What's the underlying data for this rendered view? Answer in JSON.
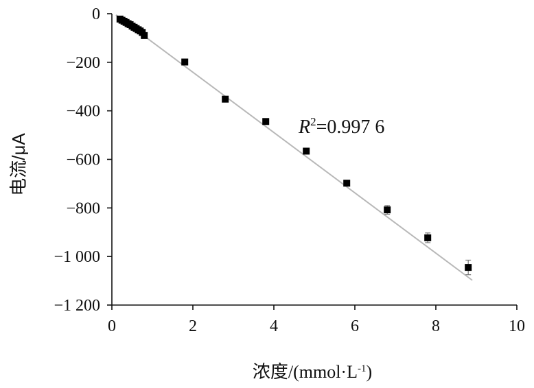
{
  "chart_data": {
    "type": "scatter",
    "title": "",
    "xlabel": "浓度/(mmol·L",
    "xlabel_sup": "-1",
    "xlabel_end": ")",
    "ylabel": "电流/μA",
    "xlim": [
      0,
      10
    ],
    "ylim": [
      -1200,
      0
    ],
    "x_ticks": [
      "0",
      "2",
      "4",
      "6",
      "8",
      "10"
    ],
    "y_ticks": [
      "0",
      "−200",
      "−400",
      "−600",
      "−800",
      "−1 000",
      "−1 200"
    ],
    "grid": false,
    "legend": "none",
    "annotation": {
      "prefix": "R",
      "sup": "2",
      "value": "=0.997 6"
    },
    "trendline": {
      "x": [
        0.1,
        8.9
      ],
      "y": [
        -5,
        -1098
      ]
    },
    "series": [
      {
        "x": [
          0.2,
          0.25,
          0.3,
          0.35,
          0.4,
          0.45,
          0.5,
          0.55,
          0.6,
          0.65,
          0.7,
          0.75,
          0.8,
          1.8,
          2.8,
          3.8,
          4.8,
          5.8,
          6.8,
          7.8,
          8.8
        ],
        "y": [
          -22,
          -27,
          -31,
          -36,
          -41,
          -45,
          -51,
          -56,
          -61,
          -66,
          -71,
          -77,
          -90,
          -199,
          -352,
          -444,
          -566,
          -698,
          -808,
          -923,
          -1045
        ],
        "err": [
          0,
          0,
          0,
          0,
          0,
          0,
          0,
          0,
          0,
          0,
          0,
          0,
          0,
          0,
          0,
          0,
          0,
          6,
          18,
          20,
          30
        ]
      }
    ],
    "colors": {
      "marker": "#000000",
      "trendline": "#b8b8b8",
      "axis": "#111111"
    }
  }
}
